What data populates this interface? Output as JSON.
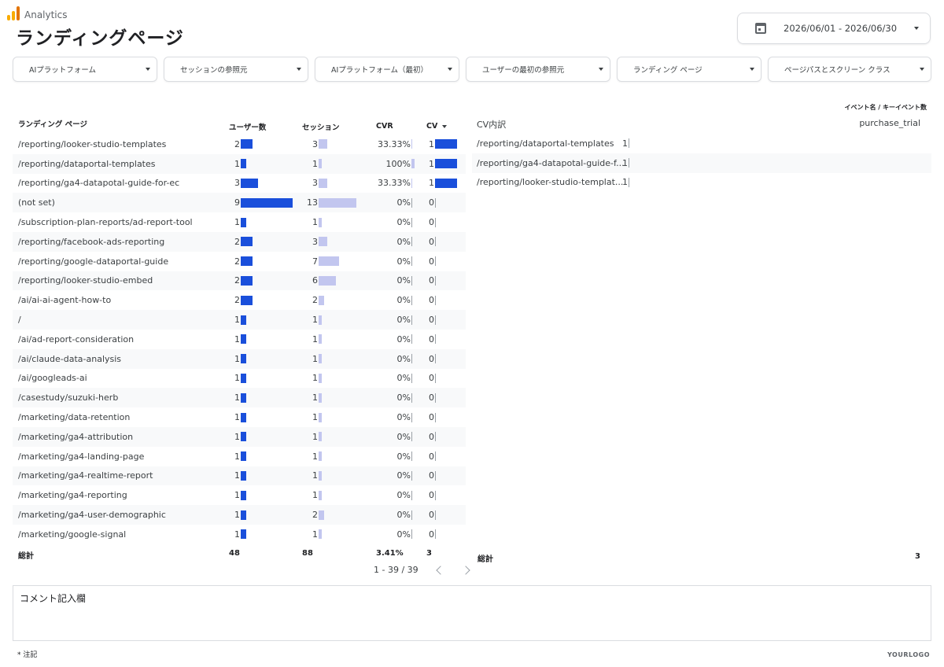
{
  "app": {
    "name": "Analytics"
  },
  "page_title": "ランディングページ",
  "date_range": {
    "label": "2026/06/01 - 2026/06/30"
  },
  "filters": [
    {
      "label": "AIプラットフォーム"
    },
    {
      "label": "セッションの参照元"
    },
    {
      "label": "AIプラットフォーム（最初）"
    },
    {
      "label": "ユーザーの最初の参照元"
    },
    {
      "label": "ランディング ページ"
    },
    {
      "label": "ページパスとスクリーン クラス"
    }
  ],
  "main_table": {
    "headers": {
      "page": "ランディング ページ",
      "users": "ユーザー数",
      "sessions": "セッション",
      "cvr": "CVR",
      "cv": "CV"
    },
    "max_users": 9,
    "max_sessions": 13,
    "max_cv": 1,
    "rows": [
      {
        "page": "/reporting/looker-studio-templates",
        "users": 2,
        "sessions": 3,
        "cvr": "33.33%",
        "cvr_value": 33.33,
        "cv": 1
      },
      {
        "page": "/reporting/dataportal-templates",
        "users": 1,
        "sessions": 1,
        "cvr": "100%",
        "cvr_value": 100,
        "cv": 1
      },
      {
        "page": "/reporting/ga4-datapotal-guide-for-ec",
        "users": 3,
        "sessions": 3,
        "cvr": "33.33%",
        "cvr_value": 33.33,
        "cv": 1
      },
      {
        "page": "(not set)",
        "users": 9,
        "sessions": 13,
        "cvr": "0%",
        "cvr_value": 0,
        "cv": 0
      },
      {
        "page": "/subscription-plan-reports/ad-report-tool",
        "users": 1,
        "sessions": 1,
        "cvr": "0%",
        "cvr_value": 0,
        "cv": 0
      },
      {
        "page": "/reporting/facebook-ads-reporting",
        "users": 2,
        "sessions": 3,
        "cvr": "0%",
        "cvr_value": 0,
        "cv": 0
      },
      {
        "page": "/reporting/google-dataportal-guide",
        "users": 2,
        "sessions": 7,
        "cvr": "0%",
        "cvr_value": 0,
        "cv": 0
      },
      {
        "page": "/reporting/looker-studio-embed",
        "users": 2,
        "sessions": 6,
        "cvr": "0%",
        "cvr_value": 0,
        "cv": 0
      },
      {
        "page": "/ai/ai-ai-agent-how-to",
        "users": 2,
        "sessions": 2,
        "cvr": "0%",
        "cvr_value": 0,
        "cv": 0
      },
      {
        "page": "/",
        "users": 1,
        "sessions": 1,
        "cvr": "0%",
        "cvr_value": 0,
        "cv": 0
      },
      {
        "page": "/ai/ad-report-consideration",
        "users": 1,
        "sessions": 1,
        "cvr": "0%",
        "cvr_value": 0,
        "cv": 0
      },
      {
        "page": "/ai/claude-data-analysis",
        "users": 1,
        "sessions": 1,
        "cvr": "0%",
        "cvr_value": 0,
        "cv": 0
      },
      {
        "page": "/ai/googleads-ai",
        "users": 1,
        "sessions": 1,
        "cvr": "0%",
        "cvr_value": 0,
        "cv": 0
      },
      {
        "page": "/casestudy/suzuki-herb",
        "users": 1,
        "sessions": 1,
        "cvr": "0%",
        "cvr_value": 0,
        "cv": 0
      },
      {
        "page": "/marketing/data-retention",
        "users": 1,
        "sessions": 1,
        "cvr": "0%",
        "cvr_value": 0,
        "cv": 0
      },
      {
        "page": "/marketing/ga4-attribution",
        "users": 1,
        "sessions": 1,
        "cvr": "0%",
        "cvr_value": 0,
        "cv": 0
      },
      {
        "page": "/marketing/ga4-landing-page",
        "users": 1,
        "sessions": 1,
        "cvr": "0%",
        "cvr_value": 0,
        "cv": 0
      },
      {
        "page": "/marketing/ga4-realtime-report",
        "users": 1,
        "sessions": 1,
        "cvr": "0%",
        "cvr_value": 0,
        "cv": 0
      },
      {
        "page": "/marketing/ga4-reporting",
        "users": 1,
        "sessions": 1,
        "cvr": "0%",
        "cvr_value": 0,
        "cv": 0
      },
      {
        "page": "/marketing/ga4-user-demographic",
        "users": 1,
        "sessions": 2,
        "cvr": "0%",
        "cvr_value": 0,
        "cv": 0
      },
      {
        "page": "/marketing/google-signal",
        "users": 1,
        "sessions": 1,
        "cvr": "0%",
        "cvr_value": 0,
        "cv": 0
      }
    ],
    "totals": {
      "label": "総計",
      "users": "48",
      "sessions": "88",
      "cvr": "3.41%",
      "cv": "3"
    },
    "pagination": "1 - 39 / 39"
  },
  "cv_table": {
    "super_header": "イベント名 / キーイベント数",
    "header_left": "CV内訳",
    "header_right": "purchase_trial",
    "rows": [
      {
        "page": "/reporting/dataportal-templates",
        "value": 1
      },
      {
        "page": "/reporting/ga4-datapotal-guide-f...",
        "value": 1
      },
      {
        "page": "/reporting/looker-studio-templat...",
        "value": 1
      }
    ],
    "totals": {
      "label": "総計",
      "value": "3"
    }
  },
  "comment_box": {
    "label": "コメント記入欄"
  },
  "note": "* 注記",
  "footer_logo": "YOURLOGO",
  "colors": {
    "users_bar": "#1a4fdb",
    "sessions_bar": "#c2c6ef",
    "cv_bar": "#1a4fdb"
  }
}
